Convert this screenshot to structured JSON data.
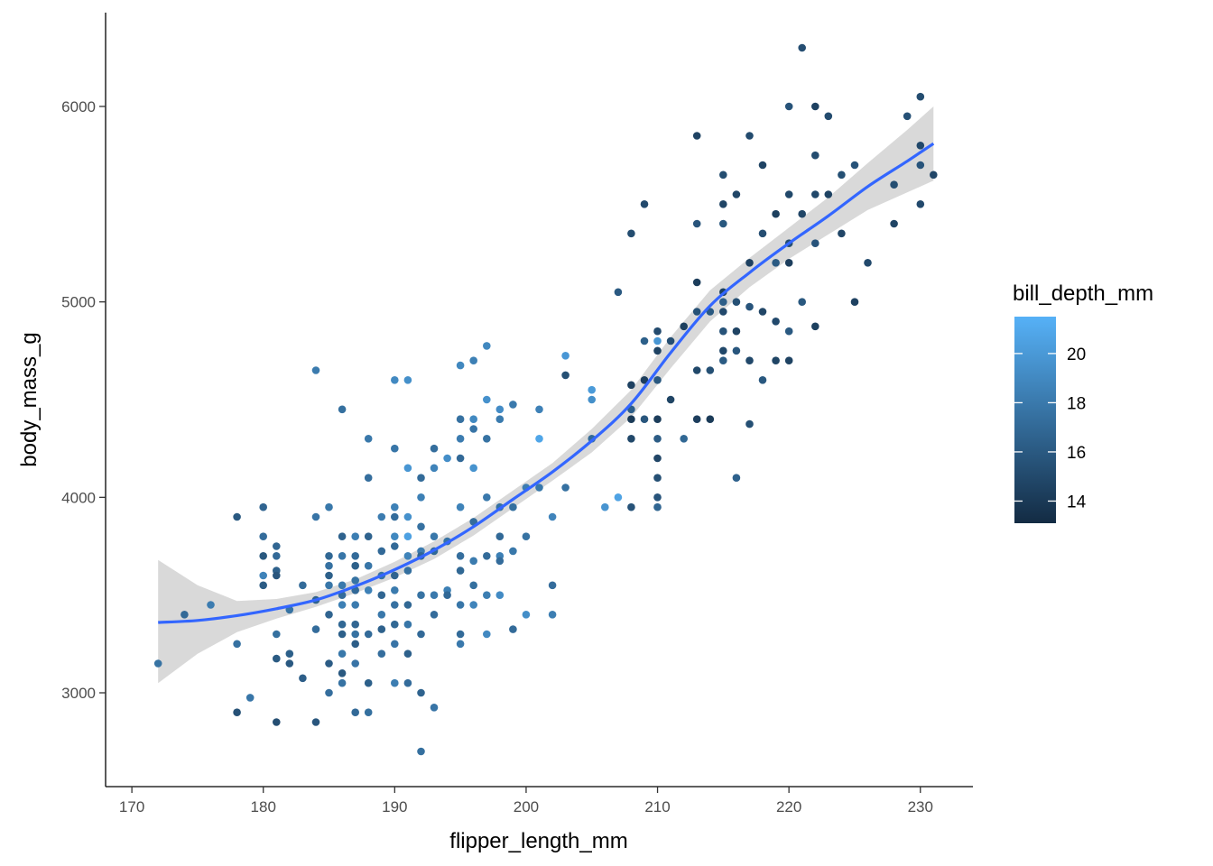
{
  "chart_data": {
    "type": "scatter",
    "xlabel": "flipper_length_mm",
    "ylabel": "body_mass_g",
    "xlim": [
      168,
      234
    ],
    "ylim": [
      2520,
      6480
    ],
    "x_ticks": [
      170,
      180,
      190,
      200,
      210,
      220,
      230
    ],
    "y_ticks": [
      3000,
      4000,
      5000,
      6000
    ],
    "grid": false,
    "legend": {
      "title": "bill_depth_mm",
      "placement": "right",
      "type": "colorbar",
      "range": [
        13.1,
        21.5
      ],
      "ticks": [
        14,
        16,
        18,
        20
      ],
      "color_low": "#132b43",
      "color_high": "#56b1f7"
    },
    "smooth": {
      "method": "loess",
      "color": "#3366ff",
      "band_color": "#d9d9d9",
      "x": [
        172,
        175,
        178,
        181,
        184,
        187,
        190,
        193,
        196,
        199,
        202,
        205,
        208,
        211,
        214,
        217,
        220,
        223,
        226,
        229,
        231
      ],
      "y": [
        3360,
        3370,
        3395,
        3430,
        3475,
        3545,
        3630,
        3730,
        3850,
        3990,
        4130,
        4290,
        4480,
        4740,
        4980,
        5150,
        5300,
        5440,
        5590,
        5720,
        5810
      ],
      "lower": [
        3050,
        3200,
        3310,
        3380,
        3440,
        3510,
        3590,
        3685,
        3805,
        3945,
        4085,
        4230,
        4410,
        4660,
        4900,
        5075,
        5220,
        5345,
        5470,
        5560,
        5620
      ],
      "upper": [
        3680,
        3550,
        3470,
        3480,
        3515,
        3580,
        3670,
        3775,
        3895,
        4035,
        4175,
        4350,
        4550,
        4820,
        5060,
        5225,
        5380,
        5535,
        5710,
        5880,
        6000
      ]
    },
    "points": [
      [
        172,
        3150,
        17.6
      ],
      [
        174,
        3400,
        17.0
      ],
      [
        176,
        3450,
        18.2
      ],
      [
        178,
        3900,
        16.0
      ],
      [
        178,
        3250,
        17.5
      ],
      [
        178,
        2900,
        15.5
      ],
      [
        179,
        2975,
        17.8
      ],
      [
        180,
        3950,
        16.7
      ],
      [
        180,
        3800,
        17.2
      ],
      [
        180,
        3700,
        15.9
      ],
      [
        180,
        3600,
        18.6
      ],
      [
        180,
        3550,
        16.2
      ],
      [
        181,
        3750,
        16.8
      ],
      [
        181,
        3700,
        17.0
      ],
      [
        181,
        3625,
        16.5
      ],
      [
        181,
        3600,
        15.8
      ],
      [
        181,
        3300,
        17.4
      ],
      [
        181,
        3175,
        16.1
      ],
      [
        181,
        2850,
        15.3
      ],
      [
        182,
        3425,
        17.6
      ],
      [
        182,
        3200,
        16.4
      ],
      [
        182,
        3150,
        16.0
      ],
      [
        183,
        3550,
        17.1
      ],
      [
        183,
        3075,
        16.3
      ],
      [
        184,
        4650,
        18.1
      ],
      [
        184,
        3900,
        17.7
      ],
      [
        184,
        3475,
        16.6
      ],
      [
        184,
        3325,
        17.2
      ],
      [
        184,
        2850,
        15.8
      ],
      [
        185,
        3950,
        17.9
      ],
      [
        185,
        3700,
        16.9
      ],
      [
        185,
        3650,
        17.5
      ],
      [
        185,
        3600,
        16.4
      ],
      [
        185,
        3550,
        17.8
      ],
      [
        185,
        3400,
        16.7
      ],
      [
        185,
        3150,
        16.2
      ],
      [
        185,
        3000,
        17.3
      ],
      [
        186,
        4450,
        17.4
      ],
      [
        186,
        3800,
        16.6
      ],
      [
        186,
        3700,
        17.8
      ],
      [
        186,
        3550,
        18.0
      ],
      [
        186,
        3500,
        17.2
      ],
      [
        186,
        3450,
        18.4
      ],
      [
        186,
        3350,
        16.9
      ],
      [
        186,
        3300,
        16.4
      ],
      [
        186,
        3200,
        17.9
      ],
      [
        186,
        3100,
        16.0
      ],
      [
        186,
        3050,
        17.6
      ],
      [
        187,
        3800,
        18.3
      ],
      [
        187,
        3700,
        17.1
      ],
      [
        187,
        3650,
        16.4
      ],
      [
        187,
        3575,
        17.6
      ],
      [
        187,
        3525,
        17.0
      ],
      [
        187,
        3450,
        18.1
      ],
      [
        187,
        3350,
        16.8
      ],
      [
        187,
        3300,
        17.5
      ],
      [
        187,
        3250,
        16.3
      ],
      [
        187,
        3150,
        17.7
      ],
      [
        187,
        2900,
        17.0
      ],
      [
        188,
        4300,
        17.9
      ],
      [
        188,
        4100,
        17.3
      ],
      [
        188,
        3800,
        16.6
      ],
      [
        188,
        3650,
        17.8
      ],
      [
        188,
        3525,
        18.5
      ],
      [
        188,
        3300,
        17.1
      ],
      [
        188,
        3050,
        16.4
      ],
      [
        188,
        2900,
        17.4
      ],
      [
        189,
        3900,
        18.2
      ],
      [
        189,
        3725,
        17.0
      ],
      [
        189,
        3600,
        17.6
      ],
      [
        189,
        3500,
        16.8
      ],
      [
        189,
        3400,
        17.9
      ],
      [
        189,
        3325,
        16.5
      ],
      [
        189,
        3200,
        17.3
      ],
      [
        190,
        4600,
        19.0
      ],
      [
        190,
        4250,
        17.8
      ],
      [
        190,
        3950,
        18.5
      ],
      [
        190,
        3900,
        17.2
      ],
      [
        190,
        3800,
        18.9
      ],
      [
        190,
        3750,
        17.0
      ],
      [
        190,
        3600,
        16.6
      ],
      [
        190,
        3525,
        18.1
      ],
      [
        190,
        3450,
        17.5
      ],
      [
        190,
        3350,
        16.9
      ],
      [
        190,
        3250,
        17.7
      ],
      [
        190,
        3050,
        18.3
      ],
      [
        191,
        4600,
        19.4
      ],
      [
        191,
        4150,
        19.8
      ],
      [
        191,
        3900,
        19.5
      ],
      [
        191,
        3800,
        20.5
      ],
      [
        191,
        3700,
        18.6
      ],
      [
        191,
        3625,
        17.4
      ],
      [
        191,
        3450,
        16.9
      ],
      [
        191,
        3350,
        17.8
      ],
      [
        191,
        3200,
        16.5
      ],
      [
        191,
        3050,
        17.2
      ],
      [
        192,
        4100,
        17.1
      ],
      [
        192,
        4000,
        18.4
      ],
      [
        192,
        3850,
        17.5
      ],
      [
        192,
        3725,
        18.2
      ],
      [
        192,
        3700,
        16.8
      ],
      [
        192,
        3500,
        17.6
      ],
      [
        192,
        3300,
        17.0
      ],
      [
        192,
        3000,
        16.6
      ],
      [
        192,
        2700,
        17.4
      ],
      [
        193,
        4250,
        17.3
      ],
      [
        193,
        4150,
        18.6
      ],
      [
        193,
        3800,
        17.9
      ],
      [
        193,
        3725,
        16.9
      ],
      [
        193,
        3500,
        18.0
      ],
      [
        193,
        3400,
        17.2
      ],
      [
        193,
        2925,
        17.7
      ],
      [
        194,
        4200,
        19.3
      ],
      [
        194,
        3775,
        17.6
      ],
      [
        194,
        3525,
        18.4
      ],
      [
        194,
        3500,
        17.0
      ],
      [
        195,
        4675,
        18.9
      ],
      [
        195,
        4400,
        17.5
      ],
      [
        195,
        4300,
        18.2
      ],
      [
        195,
        4200,
        17.0
      ],
      [
        195,
        3950,
        18.6
      ],
      [
        195,
        3700,
        17.3
      ],
      [
        195,
        3625,
        16.9
      ],
      [
        195,
        3450,
        17.8
      ],
      [
        195,
        3300,
        17.1
      ],
      [
        195,
        3250,
        18.0
      ],
      [
        196,
        4700,
        18.4
      ],
      [
        196,
        4400,
        19.0
      ],
      [
        196,
        4350,
        17.7
      ],
      [
        196,
        4150,
        19.6
      ],
      [
        196,
        3875,
        17.2
      ],
      [
        196,
        3675,
        18.1
      ],
      [
        196,
        3550,
        17.4
      ],
      [
        196,
        3450,
        18.7
      ],
      [
        197,
        4775,
        18.9
      ],
      [
        197,
        4500,
        19.5
      ],
      [
        197,
        4300,
        17.6
      ],
      [
        197,
        4000,
        18.0
      ],
      [
        197,
        3700,
        17.1
      ],
      [
        197,
        3500,
        18.3
      ],
      [
        197,
        3300,
        19.0
      ],
      [
        198,
        4450,
        19.2
      ],
      [
        198,
        4400,
        18.1
      ],
      [
        198,
        3950,
        17.5
      ],
      [
        198,
        3800,
        17.0
      ],
      [
        198,
        3700,
        18.4
      ],
      [
        198,
        3675,
        17.2
      ],
      [
        198,
        3500,
        19.1
      ],
      [
        199,
        4475,
        18.0
      ],
      [
        199,
        3950,
        17.4
      ],
      [
        199,
        3725,
        17.9
      ],
      [
        199,
        3325,
        17.1
      ],
      [
        200,
        4050,
        18.2
      ],
      [
        200,
        3800,
        17.6
      ],
      [
        200,
        3400,
        19.3
      ],
      [
        201,
        4300,
        20.8
      ],
      [
        201,
        4450,
        18.5
      ],
      [
        201,
        4050,
        17.9
      ],
      [
        202,
        3900,
        18.7
      ],
      [
        202,
        3550,
        17.2
      ],
      [
        202,
        3400,
        18.3
      ],
      [
        203,
        4725,
        19.9
      ],
      [
        203,
        4625,
        15.4
      ],
      [
        203,
        4050,
        17.5
      ],
      [
        205,
        4550,
        20.1
      ],
      [
        205,
        4500,
        19.4
      ],
      [
        205,
        4300,
        17.0
      ],
      [
        206,
        3950,
        19.7
      ],
      [
        207,
        5050,
        16.0
      ],
      [
        207,
        4000,
        20.6
      ],
      [
        208,
        5350,
        15.2
      ],
      [
        208,
        4575,
        14.5
      ],
      [
        208,
        4450,
        16.3
      ],
      [
        208,
        4400,
        14.1
      ],
      [
        208,
        4300,
        14.9
      ],
      [
        208,
        3950,
        15.6
      ],
      [
        209,
        5500,
        15.0
      ],
      [
        209,
        4800,
        16.4
      ],
      [
        209,
        4600,
        14.3
      ],
      [
        209,
        4400,
        15.8
      ],
      [
        210,
        4850,
        15.1
      ],
      [
        210,
        4800,
        19.8
      ],
      [
        210,
        4750,
        14.6
      ],
      [
        210,
        4600,
        15.9
      ],
      [
        210,
        4400,
        14.2
      ],
      [
        210,
        4300,
        16.2
      ],
      [
        210,
        4200,
        14.8
      ],
      [
        210,
        4100,
        15.4
      ],
      [
        210,
        4000,
        15.7
      ],
      [
        210,
        3950,
        16.8
      ],
      [
        211,
        4800,
        15.3
      ],
      [
        211,
        4500,
        14.7
      ],
      [
        212,
        4875,
        14.4
      ],
      [
        212,
        4300,
        16.9
      ],
      [
        213,
        5850,
        14.6
      ],
      [
        213,
        5400,
        15.7
      ],
      [
        213,
        5100,
        14.2
      ],
      [
        213,
        4950,
        15.5
      ],
      [
        213,
        4650,
        14.9
      ],
      [
        213,
        4400,
        14.3
      ],
      [
        214,
        4950,
        16.0
      ],
      [
        214,
        4650,
        15.4
      ],
      [
        214,
        4400,
        14.1
      ],
      [
        215,
        5650,
        15.2
      ],
      [
        215,
        5500,
        14.7
      ],
      [
        215,
        5400,
        15.9
      ],
      [
        215,
        5050,
        14.4
      ],
      [
        215,
        5000,
        16.3
      ],
      [
        215,
        4950,
        15.0
      ],
      [
        215,
        4850,
        15.6
      ],
      [
        215,
        4750,
        14.9
      ],
      [
        215,
        4700,
        16.1
      ],
      [
        216,
        5550,
        14.8
      ],
      [
        216,
        5000,
        15.4
      ],
      [
        216,
        4850,
        14.6
      ],
      [
        216,
        4750,
        15.8
      ],
      [
        216,
        4100,
        16.5
      ],
      [
        217,
        5850,
        15.1
      ],
      [
        217,
        5200,
        14.5
      ],
      [
        217,
        4975,
        15.7
      ],
      [
        217,
        4700,
        14.9
      ],
      [
        217,
        4375,
        15.4
      ],
      [
        218,
        5700,
        14.6
      ],
      [
        218,
        5350,
        15.3
      ],
      [
        218,
        4950,
        14.8
      ],
      [
        218,
        4600,
        15.9
      ],
      [
        219,
        5450,
        14.4
      ],
      [
        219,
        5200,
        16.1
      ],
      [
        219,
        4900,
        15.0
      ],
      [
        219,
        4700,
        14.7
      ],
      [
        220,
        6000,
        15.6
      ],
      [
        220,
        5550,
        14.9
      ],
      [
        220,
        5300,
        15.2
      ],
      [
        220,
        5200,
        14.3
      ],
      [
        220,
        4850,
        16.0
      ],
      [
        220,
        4700,
        14.6
      ],
      [
        221,
        6300,
        15.3
      ],
      [
        221,
        5450,
        14.8
      ],
      [
        221,
        5000,
        15.9
      ],
      [
        222,
        6000,
        14.5
      ],
      [
        222,
        5750,
        15.2
      ],
      [
        222,
        5550,
        14.9
      ],
      [
        222,
        5300,
        15.7
      ],
      [
        222,
        4875,
        14.4
      ],
      [
        223,
        5950,
        15.1
      ],
      [
        223,
        5550,
        14.6
      ],
      [
        224,
        5650,
        15.4
      ],
      [
        224,
        5350,
        14.8
      ],
      [
        225,
        5700,
        15.6
      ],
      [
        225,
        5000,
        14.5
      ],
      [
        226,
        5200,
        15.0
      ],
      [
        228,
        5600,
        15.3
      ],
      [
        228,
        5400,
        14.7
      ],
      [
        229,
        5950,
        15.5
      ],
      [
        230,
        6050,
        15.2
      ],
      [
        230,
        5800,
        14.9
      ],
      [
        230,
        5700,
        15.7
      ],
      [
        230,
        5500,
        15.0
      ],
      [
        231,
        5650,
        14.8
      ]
    ]
  }
}
